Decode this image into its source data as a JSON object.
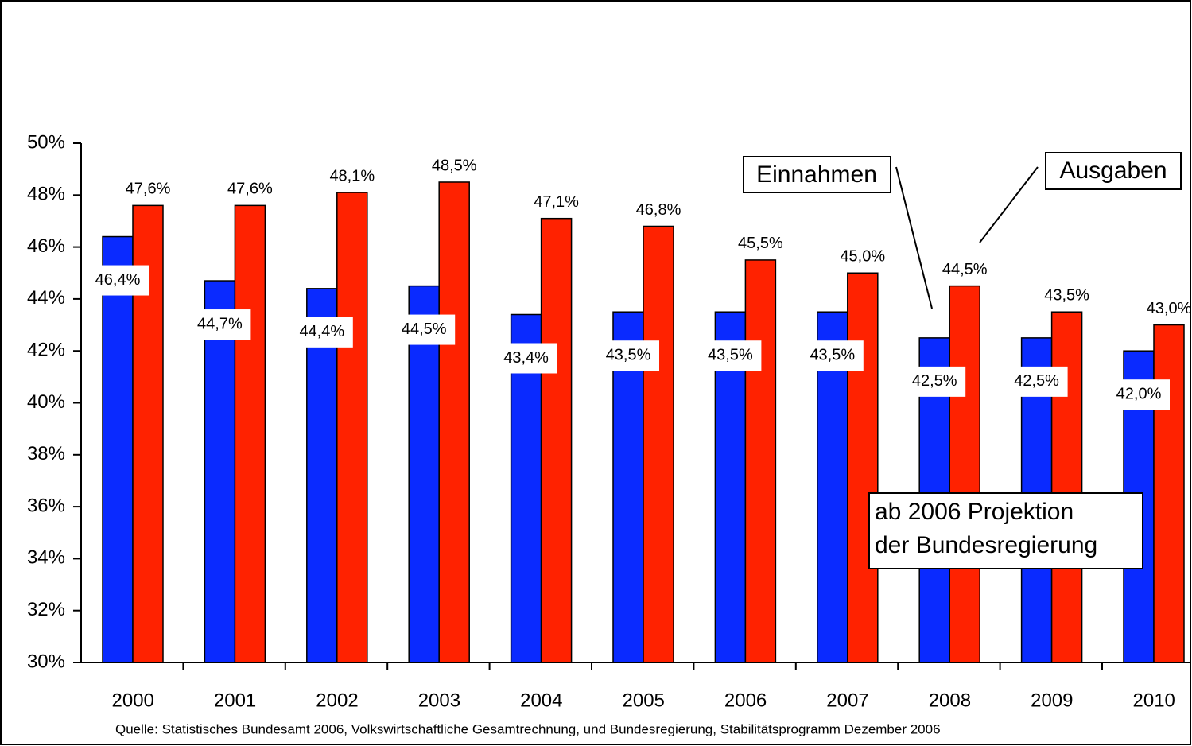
{
  "chart_data": {
    "type": "bar",
    "categories": [
      "2000",
      "2001",
      "2002",
      "2003",
      "2004",
      "2005",
      "2006",
      "2007",
      "2008",
      "2009",
      "2010"
    ],
    "series": [
      {
        "name": "Einnahmen",
        "color": "#0a2aff",
        "values": [
          46.4,
          44.7,
          44.4,
          44.5,
          43.4,
          43.5,
          43.5,
          43.5,
          42.5,
          42.5,
          42.0
        ],
        "value_labels": [
          "46,4%",
          "44,7%",
          "44,4%",
          "44,5%",
          "43,4%",
          "43,5%",
          "43,5%",
          "43,5%",
          "42,5%",
          "42,5%",
          "42,0%"
        ]
      },
      {
        "name": "Ausgaben",
        "color": "#ff2200",
        "values": [
          47.6,
          47.6,
          48.1,
          48.5,
          47.1,
          46.8,
          45.5,
          45.0,
          44.5,
          43.5,
          43.0
        ],
        "value_labels": [
          "47,6%",
          "47,6%",
          "48,1%",
          "48,5%",
          "47,1%",
          "46,8%",
          "45,5%",
          "45,0%",
          "44,5%",
          "43,5%",
          "43,0%"
        ]
      }
    ],
    "ylim": [
      30,
      50
    ],
    "yticks": [
      {
        "value": 30,
        "label": "30%"
      },
      {
        "value": 32,
        "label": "32%"
      },
      {
        "value": 34,
        "label": "34%"
      },
      {
        "value": 36,
        "label": "36%"
      },
      {
        "value": 38,
        "label": "38%"
      },
      {
        "value": 40,
        "label": "40%"
      },
      {
        "value": 42,
        "label": "42%"
      },
      {
        "value": 44,
        "label": "44%"
      },
      {
        "value": 46,
        "label": "46%"
      },
      {
        "value": 48,
        "label": "48%"
      },
      {
        "value": 50,
        "label": "50%"
      }
    ],
    "annotation": [
      "ab 2006 Projektion",
      "der Bundesregierung"
    ],
    "source": "Quelle: Statistisches Bundesamt 2006, Volkswirtschaftliche Gesamtrechnung, und Bundesregierung, Stabilitätsprogramm Dezember 2006"
  }
}
